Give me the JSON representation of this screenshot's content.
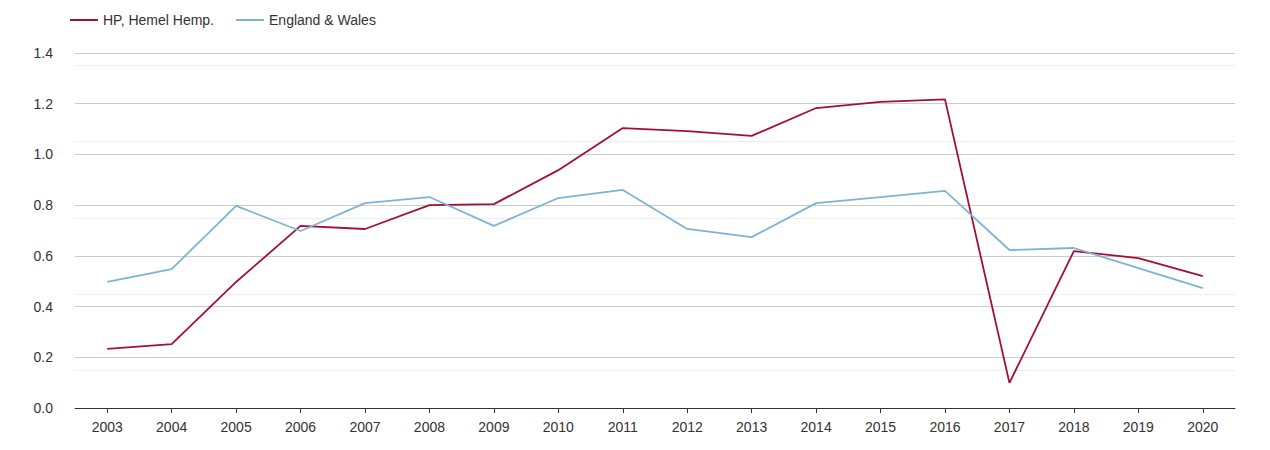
{
  "chart_data": {
    "type": "line",
    "categories": [
      "2003",
      "2004",
      "2005",
      "2006",
      "2007",
      "2008",
      "2009",
      "2010",
      "2011",
      "2012",
      "2013",
      "2014",
      "2015",
      "2016",
      "2017",
      "2018",
      "2019",
      "2020"
    ],
    "series": [
      {
        "name": "HP, Hemel Hemp.",
        "color": "#a50f35",
        "values": [
          0.233,
          0.252,
          0.497,
          0.718,
          0.706,
          0.8,
          0.804,
          0.938,
          1.104,
          1.092,
          1.073,
          1.183,
          1.207,
          1.217,
          0.099,
          0.619,
          0.591,
          0.52
        ]
      },
      {
        "name": "England & Wales",
        "color": "#7fb3d5",
        "values": [
          0.497,
          0.548,
          0.797,
          0.698,
          0.808,
          0.832,
          0.718,
          0.828,
          0.86,
          0.706,
          0.674,
          0.808,
          0.832,
          0.856,
          0.623,
          0.631,
          0.552,
          0.473
        ]
      }
    ],
    "ylim": [
      0,
      1.4
    ],
    "yticks": [
      {
        "value": 0,
        "label": "0.0"
      },
      0.2,
      0.4,
      0.6,
      0.8,
      {
        "value": 1,
        "label": "1.0"
      },
      1.2,
      1.4
    ],
    "grid": true,
    "legend": "top-left"
  }
}
